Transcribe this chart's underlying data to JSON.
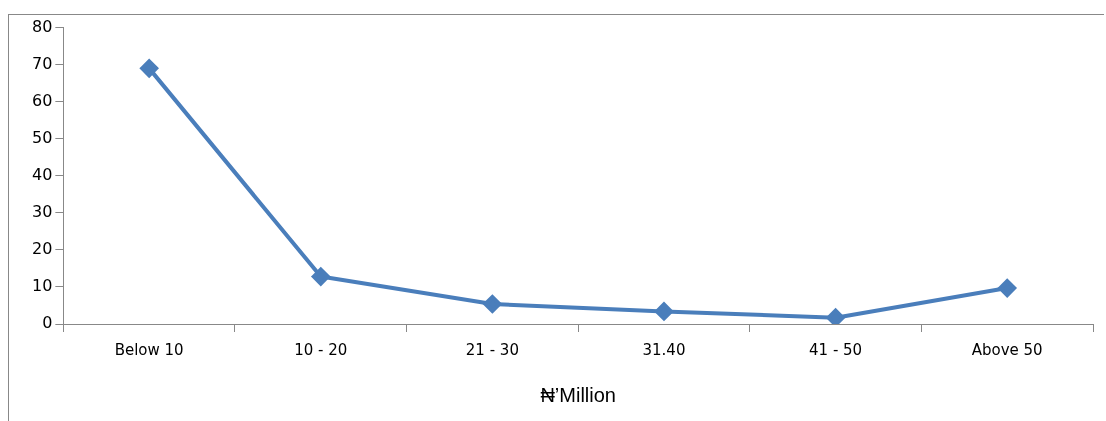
{
  "chart_data": {
    "type": "line",
    "xlabel": "₦’Million",
    "categories": [
      "Below 10",
      "10 - 20",
      "21 - 30",
      "31.40",
      "41 - 50",
      "Above 50"
    ],
    "series": [
      {
        "color": "#4a7ebb",
        "values": [
          69,
          12.8,
          5.4,
          3.4,
          1.7,
          9.7
        ]
      }
    ],
    "ylim": [
      0,
      80
    ],
    "yticks": [
      0,
      10,
      20,
      30,
      40,
      50,
      60,
      70,
      80
    ],
    "grid": false,
    "legend": false,
    "marker": "diamond",
    "line_style": "solid"
  }
}
